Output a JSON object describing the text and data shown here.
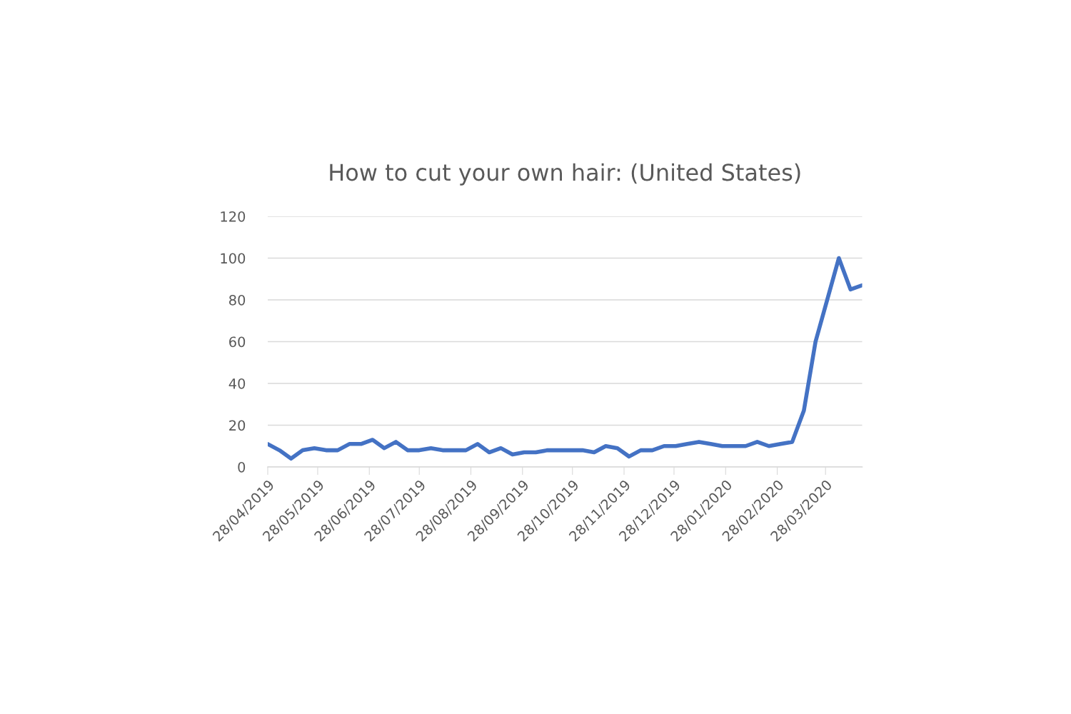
{
  "chart_data": {
    "type": "line",
    "title": "How to cut your own hair: (United States)",
    "x": [
      "2019-04-28",
      "2019-05-05",
      "2019-05-12",
      "2019-05-19",
      "2019-05-26",
      "2019-06-02",
      "2019-06-09",
      "2019-06-16",
      "2019-06-23",
      "2019-06-30",
      "2019-07-07",
      "2019-07-14",
      "2019-07-21",
      "2019-07-28",
      "2019-08-04",
      "2019-08-11",
      "2019-08-18",
      "2019-08-25",
      "2019-09-01",
      "2019-09-08",
      "2019-09-15",
      "2019-09-22",
      "2019-09-29",
      "2019-10-06",
      "2019-10-13",
      "2019-10-20",
      "2019-10-27",
      "2019-11-03",
      "2019-11-10",
      "2019-11-17",
      "2019-11-24",
      "2019-12-01",
      "2019-12-08",
      "2019-12-15",
      "2019-12-22",
      "2019-12-29",
      "2020-01-05",
      "2020-01-12",
      "2020-01-19",
      "2020-01-26",
      "2020-02-02",
      "2020-02-09",
      "2020-02-16",
      "2020-02-23",
      "2020-03-01",
      "2020-03-08",
      "2020-03-15",
      "2020-03-22",
      "2020-03-29",
      "2020-04-05",
      "2020-04-12",
      "2020-04-19"
    ],
    "series": [
      {
        "color": "#4472c4",
        "values": [
          11,
          8,
          4,
          8,
          9,
          8,
          8,
          11,
          11,
          13,
          9,
          12,
          8,
          8,
          9,
          8,
          8,
          8,
          11,
          7,
          9,
          6,
          7,
          7,
          8,
          8,
          8,
          8,
          7,
          10,
          9,
          5,
          8,
          8,
          10,
          10,
          11,
          12,
          11,
          10,
          10,
          10,
          12,
          10,
          11,
          12,
          27,
          60,
          80,
          100,
          85,
          87
        ]
      }
    ],
    "xlim": [
      "2019-04-28",
      "2020-04-19"
    ],
    "xticks": [
      {
        "value": "2019-04-28",
        "label": "28/04/2019"
      },
      {
        "value": "2019-05-28",
        "label": "28/05/2019"
      },
      {
        "value": "2019-06-28",
        "label": "28/06/2019"
      },
      {
        "value": "2019-07-28",
        "label": "28/07/2019"
      },
      {
        "value": "2019-08-28",
        "label": "28/08/2019"
      },
      {
        "value": "2019-09-28",
        "label": "28/09/2019"
      },
      {
        "value": "2019-10-28",
        "label": "28/10/2019"
      },
      {
        "value": "2019-11-28",
        "label": "28/11/2019"
      },
      {
        "value": "2019-12-28",
        "label": "28/12/2019"
      },
      {
        "value": "2020-01-28",
        "label": "28/01/2020"
      },
      {
        "value": "2020-02-28",
        "label": "28/02/2020"
      },
      {
        "value": "2020-03-28",
        "label": "28/03/2020"
      }
    ],
    "ylim": [
      0,
      120
    ],
    "yticks": [
      0,
      20,
      40,
      60,
      80,
      100,
      120
    ],
    "grid": "y",
    "marker": "none",
    "line_style": "solid"
  }
}
